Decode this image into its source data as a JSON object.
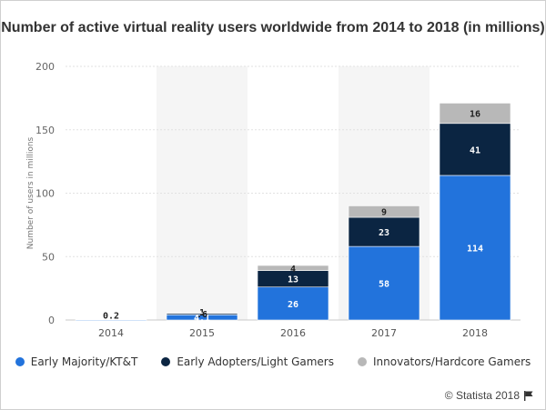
{
  "title": "Number of active virtual reality users worldwide from 2014 to 2018 (in millions)",
  "credit": "© Statista 2018",
  "chart_data": {
    "type": "bar",
    "stacked": true,
    "categories": [
      "2014",
      "2015",
      "2016",
      "2017",
      "2018"
    ],
    "series": [
      {
        "name": "Early Majority/KT&T",
        "color": "#2273dc",
        "values": [
          0.2,
          4.1,
          26,
          58,
          114
        ],
        "labels": [
          "0.2",
          "4.1",
          "26",
          "58",
          "114"
        ],
        "label_color": "#ffffff"
      },
      {
        "name": "Early Adopters/Light Gamers",
        "color": "#0b2542",
        "values": [
          0,
          1,
          13,
          23,
          41
        ],
        "labels": [
          "",
          "1",
          "13",
          "23",
          "41"
        ],
        "label_color": "#ffffff"
      },
      {
        "name": "Innovators/Hardcore Gamers",
        "color": "#b8b8b8",
        "values": [
          0,
          0.6,
          4,
          9,
          16
        ],
        "labels": [
          "",
          ".6",
          "4",
          "9",
          "16"
        ],
        "label_color": "#222222"
      }
    ],
    "ylabel": "Number of users in millions",
    "xlabel": "",
    "ylim": [
      0,
      200
    ],
    "yticks": [
      0,
      50,
      100,
      150,
      200
    ],
    "grid": true,
    "legend_position": "bottom"
  }
}
